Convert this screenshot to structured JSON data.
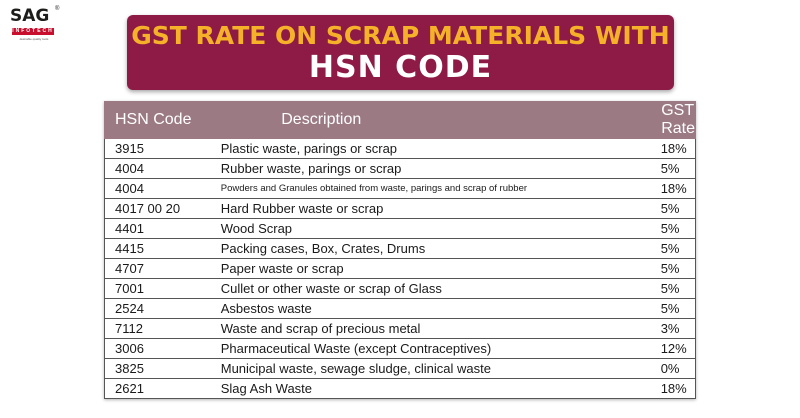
{
  "logo": {
    "brand": "SAG",
    "sub": "INFOTECH",
    "tagline": "desirable quality tools"
  },
  "title": {
    "line1": "GST RATE ON SCRAP MATERIALS WITH",
    "line2": "HSN CODE"
  },
  "table": {
    "headers": [
      "HSN Code",
      "Description",
      "GST Rate"
    ],
    "rows": [
      {
        "code": "3915",
        "description": "Plastic waste, parings or scrap",
        "rate": "18%"
      },
      {
        "code": "4004",
        "description": "Rubber waste, parings or scrap",
        "rate": "5%"
      },
      {
        "code": "4004",
        "description": "Powders and Granules obtained from waste, parings and scrap of rubber",
        "rate": "18%"
      },
      {
        "code": "4017 00 20",
        "description": "Hard Rubber waste or scrap",
        "rate": "5%"
      },
      {
        "code": "4401",
        "description": "Wood Scrap",
        "rate": "5%"
      },
      {
        "code": "4415",
        "description": "Packing cases, Box, Crates, Drums",
        "rate": "5%"
      },
      {
        "code": "4707",
        "description": "Paper waste or scrap",
        "rate": "5%"
      },
      {
        "code": "7001",
        "description": "Cullet or other waste or scrap of Glass",
        "rate": "5%"
      },
      {
        "code": "2524",
        "description": "Asbestos waste",
        "rate": "5%"
      },
      {
        "code": "7112",
        "description": "Waste and scrap of precious metal",
        "rate": "3%"
      },
      {
        "code": "3006",
        "description": "Pharmaceutical Waste (except Contraceptives)",
        "rate": "12%"
      },
      {
        "code": "3825",
        "description": "Municipal waste, sewage sludge, clinical waste",
        "rate": "0%"
      },
      {
        "code": "2621",
        "description": "Slag Ash Waste",
        "rate": "18%"
      }
    ]
  }
}
